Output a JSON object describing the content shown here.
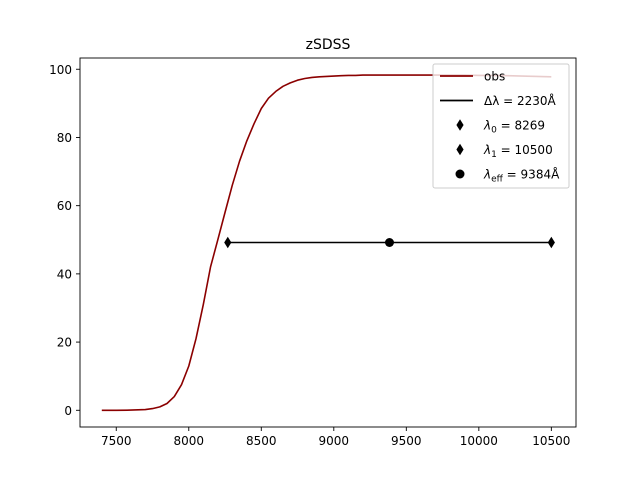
{
  "chart_data": {
    "type": "line",
    "title": "zSDSS",
    "xlabel": "",
    "ylabel": "",
    "xlim": [
      7250,
      10670
    ],
    "ylim": [
      -4.9,
      103.3
    ],
    "xticks": [
      7500,
      8000,
      8500,
      9000,
      9500,
      10000,
      10500
    ],
    "yticks": [
      0,
      20,
      40,
      60,
      80,
      100
    ],
    "grid": false,
    "legend_position": "top-right",
    "colors": {
      "obs": "#8b0000",
      "bandwidth": "#000000",
      "markers": "#000000"
    },
    "series": [
      {
        "name": "obs",
        "x": [
          7400,
          7500,
          7600,
          7700,
          7750,
          7800,
          7850,
          7900,
          7950,
          8000,
          8050,
          8100,
          8150,
          8200,
          8250,
          8300,
          8350,
          8400,
          8450,
          8500,
          8550,
          8600,
          8650,
          8700,
          8750,
          8800,
          8850,
          8900,
          8950,
          9000,
          9050,
          9100,
          9150,
          9200,
          9300,
          9400,
          9500,
          9600,
          9700,
          9800,
          9900,
          10000,
          10100,
          10200,
          10300,
          10400,
          10500
        ],
        "y": [
          0.0,
          0.0,
          0.05,
          0.2,
          0.5,
          1.0,
          2.0,
          4.0,
          7.5,
          13.0,
          21.0,
          31.0,
          42.0,
          50.0,
          58.0,
          66.0,
          73.0,
          79.0,
          84.0,
          88.5,
          91.5,
          93.5,
          95.0,
          96.0,
          96.8,
          97.3,
          97.6,
          97.8,
          97.9,
          98.0,
          98.1,
          98.2,
          98.2,
          98.3,
          98.3,
          98.3,
          98.3,
          98.3,
          98.3,
          98.3,
          98.3,
          98.2,
          98.2,
          98.1,
          98.0,
          97.9,
          97.8
        ]
      },
      {
        "name": "Δλ = 2230Å",
        "x": [
          8269,
          10500
        ],
        "y": [
          49.2,
          49.2
        ]
      }
    ],
    "markers": [
      {
        "name": "λ0 = 8269",
        "x": 8269,
        "y": 49.2,
        "shape": "diamond"
      },
      {
        "name": "λ1 = 10500",
        "x": 10500,
        "y": 49.2,
        "shape": "diamond"
      },
      {
        "name": "λeff = 9384Å",
        "x": 9384,
        "y": 49.2,
        "shape": "circle"
      }
    ],
    "legend": [
      {
        "label": "obs",
        "kind": "line",
        "color": "#8b0000"
      },
      {
        "label": "Δλ = 2230Å",
        "kind": "line",
        "color": "#000000"
      },
      {
        "label": "λ0 = 8269",
        "kind": "diamond",
        "color": "#000000"
      },
      {
        "label": "λ1 = 10500",
        "kind": "diamond",
        "color": "#000000"
      },
      {
        "label": "λeff = 9384Å",
        "kind": "circle",
        "color": "#000000"
      }
    ]
  }
}
